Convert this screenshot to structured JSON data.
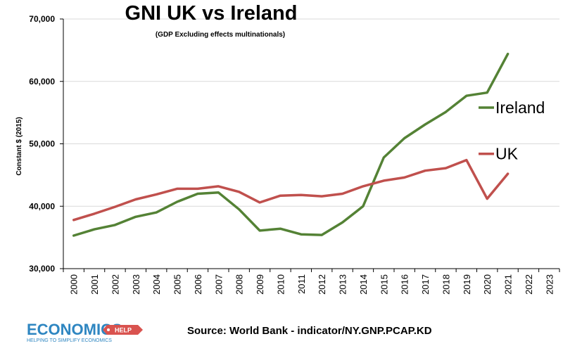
{
  "chart_data": {
    "type": "line",
    "title": "GNI UK vs Ireland",
    "subtitle": "(GDP Excluding effects multinationals)",
    "xlabel": "",
    "ylabel": "Constant $ (2015)",
    "ylim": [
      30000,
      70000
    ],
    "yticks": [
      30000,
      40000,
      50000,
      60000,
      70000
    ],
    "ytick_labels": [
      "30,000",
      "40,000",
      "50,000",
      "60,000",
      "70,000"
    ],
    "categories": [
      "2000",
      "2001",
      "2002",
      "2003",
      "2004",
      "2005",
      "2006",
      "2007",
      "2008",
      "2009",
      "2010",
      "2011",
      "2012",
      "2013",
      "2014",
      "2015",
      "2016",
      "2017",
      "2018",
      "2019",
      "2020",
      "2021",
      "2022",
      "2023"
    ],
    "series": [
      {
        "name": "Ireland",
        "color": "#548235",
        "values": [
          35300,
          36300,
          37000,
          38300,
          39000,
          40700,
          42000,
          42200,
          39500,
          36100,
          36400,
          35500,
          35400,
          37400,
          40000,
          47800,
          50900,
          53100,
          55100,
          57700,
          58200,
          64400,
          null,
          null
        ]
      },
      {
        "name": "UK",
        "color": "#c0504d",
        "values": [
          37800,
          38800,
          39900,
          41100,
          41900,
          42800,
          42800,
          43200,
          42300,
          40600,
          41700,
          41800,
          41600,
          42000,
          43200,
          44100,
          44600,
          45700,
          46100,
          47400,
          41200,
          45200,
          null,
          null
        ]
      }
    ],
    "legend": "right",
    "grid": true
  },
  "source": "Source: World Bank - indicator/NY.GNP.PCAP.KD",
  "logo": {
    "main": "ECONOMICS",
    "tag": "HELP",
    "tagline": "HELPING TO SIMPLIFY ECONOMICS",
    "color_main": "#2e86c1",
    "color_tag": "#d9534f"
  }
}
